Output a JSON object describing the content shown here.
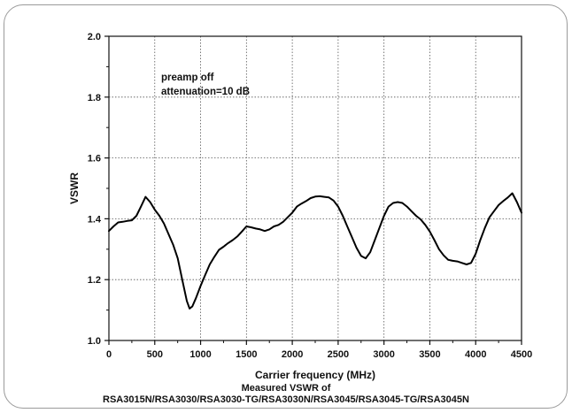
{
  "chart_data": {
    "type": "line",
    "title": "",
    "xlabel": "Carrier frequency (MHz)",
    "ylabel": "VSWR",
    "xlim": [
      0,
      4500
    ],
    "ylim": [
      1.0,
      2.0
    ],
    "xticks": [
      0,
      500,
      1000,
      1500,
      2000,
      2500,
      3000,
      3500,
      4000,
      4500
    ],
    "yticks": [
      1.0,
      1.2,
      1.4,
      1.6,
      1.8,
      2.0
    ],
    "ytick_labels": [
      "1.0",
      "1.2",
      "1.4",
      "1.6",
      "1.8",
      "2.0"
    ],
    "grid": true,
    "grid_style": "dotted",
    "legend": "none",
    "line_color": "#000000",
    "annotations": [
      "preamp off",
      "attenuation=10 dB"
    ],
    "series": [
      {
        "x": [
          0,
          50,
          100,
          150,
          200,
          250,
          300,
          350,
          400,
          450,
          500,
          550,
          600,
          650,
          700,
          750,
          800,
          850,
          880,
          910,
          950,
          1000,
          1050,
          1100,
          1150,
          1200,
          1250,
          1300,
          1350,
          1400,
          1450,
          1500,
          1550,
          1600,
          1650,
          1700,
          1750,
          1800,
          1850,
          1900,
          1950,
          2000,
          2050,
          2100,
          2150,
          2200,
          2250,
          2300,
          2350,
          2400,
          2450,
          2500,
          2550,
          2600,
          2650,
          2700,
          2750,
          2800,
          2850,
          2900,
          2950,
          3000,
          3050,
          3100,
          3150,
          3200,
          3250,
          3300,
          3350,
          3400,
          3450,
          3500,
          3550,
          3600,
          3650,
          3700,
          3750,
          3800,
          3850,
          3900,
          3950,
          4000,
          4050,
          4100,
          4150,
          4200,
          4250,
          4300,
          4350,
          4400,
          4450,
          4500
        ],
        "values": [
          1.36,
          1.375,
          1.388,
          1.39,
          1.393,
          1.395,
          1.41,
          1.44,
          1.472,
          1.455,
          1.43,
          1.41,
          1.385,
          1.35,
          1.315,
          1.27,
          1.2,
          1.13,
          1.105,
          1.112,
          1.14,
          1.18,
          1.215,
          1.25,
          1.275,
          1.298,
          1.308,
          1.32,
          1.33,
          1.342,
          1.358,
          1.375,
          1.372,
          1.368,
          1.365,
          1.36,
          1.365,
          1.375,
          1.38,
          1.39,
          1.405,
          1.42,
          1.44,
          1.45,
          1.458,
          1.468,
          1.473,
          1.474,
          1.472,
          1.47,
          1.46,
          1.44,
          1.41,
          1.375,
          1.34,
          1.305,
          1.278,
          1.27,
          1.29,
          1.33,
          1.37,
          1.41,
          1.44,
          1.452,
          1.455,
          1.452,
          1.44,
          1.425,
          1.41,
          1.398,
          1.38,
          1.358,
          1.33,
          1.3,
          1.28,
          1.265,
          1.262,
          1.26,
          1.255,
          1.25,
          1.255,
          1.285,
          1.33,
          1.37,
          1.405,
          1.425,
          1.445,
          1.458,
          1.47,
          1.484,
          1.455,
          1.42
        ]
      }
    ]
  },
  "caption": {
    "line1": "Measured VSWR of",
    "line2": "RSA3015N/RSA3030/RSA3030-TG/RSA3030N/RSA3045/RSA3045-TG/RSA3045N"
  }
}
